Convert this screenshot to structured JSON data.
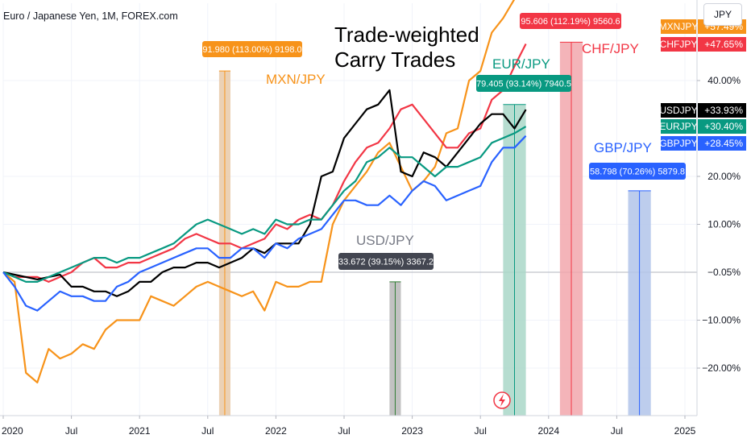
{
  "symbol_title": "Euro / Japanese Yen, 1M, FOREX.com",
  "currency_button": "JPY",
  "chart_title_lines": [
    "Trade-weighted",
    "Carry Trades"
  ],
  "chart_data": {
    "type": "line",
    "title": "Trade-weighted Carry Trades",
    "x_unit": "months since Jan 2020",
    "x_ticks": [
      {
        "x": 0,
        "label": "2020"
      },
      {
        "x": 6,
        "label": "Jul"
      },
      {
        "x": 12,
        "label": "2021"
      },
      {
        "x": 18,
        "label": "Jul"
      },
      {
        "x": 24,
        "label": "2022"
      },
      {
        "x": 30,
        "label": "Jul"
      },
      {
        "x": 36,
        "label": "2023"
      },
      {
        "x": 42,
        "label": "Jul"
      },
      {
        "x": 48,
        "label": "2024"
      },
      {
        "x": 54,
        "label": "Jul"
      },
      {
        "x": 60,
        "label": "2025"
      }
    ],
    "y_ticks": [
      {
        "y": -20,
        "label": "−20.00%"
      },
      {
        "y": -10,
        "label": "−10.00%"
      },
      {
        "y": 10,
        "label": "10.00%"
      },
      {
        "y": 20,
        "label": "20.00%"
      },
      {
        "y": 40,
        "label": "40.00%"
      }
    ],
    "ylim": [
      -30,
      55
    ],
    "grid": true,
    "series": [
      {
        "name": "MXNJPY",
        "color": "#f7931a",
        "last_label": "+57.49%",
        "values": [
          0,
          -2,
          -21,
          -23,
          -16,
          -18,
          -17,
          -15,
          -16,
          -12,
          -10,
          -10,
          -10,
          -5,
          -6,
          -7,
          -5,
          -3,
          -2,
          -3,
          -4,
          -5,
          -4,
          -8,
          -2,
          -3,
          -3,
          -2,
          -2,
          10,
          15,
          18,
          21,
          25,
          27,
          22,
          17,
          19,
          22,
          29,
          30,
          40,
          42,
          50,
          53,
          57,
          57.5
        ]
      },
      {
        "name": "CHFJPY",
        "color": "#f23645",
        "last_label": "+47.65%",
        "values": [
          0,
          -1,
          -1,
          -1,
          -2,
          -1,
          0,
          2,
          3,
          1,
          1,
          2,
          2,
          3,
          4,
          5,
          7,
          8,
          7,
          6,
          6,
          5,
          6,
          7,
          10,
          9,
          11,
          12,
          11,
          14,
          19,
          23,
          26,
          27,
          30,
          34,
          35,
          32,
          29,
          26,
          26,
          29,
          30,
          36,
          38,
          43,
          47.65
        ]
      },
      {
        "name": "USDJPY",
        "color": "#000000",
        "last_label": "+33.93%",
        "values": [
          0,
          -0.5,
          -1,
          -1.5,
          -1,
          -0.5,
          -3,
          -3,
          -4,
          -4,
          -5,
          -4,
          -2,
          -2,
          0,
          1,
          1,
          2,
          2,
          1,
          2,
          3,
          5,
          4,
          6,
          6,
          6,
          10,
          20,
          21,
          28,
          31,
          34,
          35,
          38,
          21,
          20,
          25,
          24,
          22,
          25,
          28,
          31,
          33,
          33,
          30,
          33.93
        ]
      },
      {
        "name": "EURJPY",
        "color": "#089981",
        "last_label": "+30.40%",
        "values": [
          0,
          -1,
          -2,
          -2,
          -1,
          0,
          1,
          2,
          3,
          3,
          2,
          3,
          3,
          4,
          5,
          6,
          8,
          10,
          11,
          10,
          9,
          8,
          9,
          8,
          11,
          10,
          10,
          11,
          11,
          14,
          17,
          19,
          23,
          24,
          26,
          24,
          24,
          22,
          20,
          22,
          22,
          23,
          24,
          27,
          28,
          29,
          30.4
        ]
      },
      {
        "name": "GBPJPY",
        "color": "#2962ff",
        "last_label": "+28.45%",
        "values": [
          0,
          -3,
          -7,
          -8,
          -6,
          -4,
          -5,
          -5,
          -6,
          -6,
          -3,
          -2,
          0,
          1,
          2,
          3,
          4,
          5,
          5,
          3,
          3,
          5,
          5,
          3,
          6,
          5,
          7,
          8,
          9,
          12,
          15,
          15,
          14,
          14,
          16,
          14,
          17,
          19,
          18,
          15,
          16,
          17,
          18,
          23,
          26,
          26,
          28.45
        ]
      }
    ],
    "zero_line_label": "−0.05%",
    "annotations": [
      {
        "pair_label": "MXN/JPY",
        "measure": "91.980 (113.00%) 9198.0",
        "x": 19,
        "x_end": 20,
        "y_top": 42,
        "fill": "#e8c9a8",
        "box_color": "#f7931a",
        "label_color": "#f7931a"
      },
      {
        "pair_label": "USD/JPY",
        "measure": "33.672 (39.15%) 3367.2",
        "x": 34,
        "x_end": 35,
        "y_top": -2,
        "fill": "#b7b7b7",
        "box_color": "#434651",
        "label_color": "#787b86"
      },
      {
        "pair_label": "EUR/JPY",
        "measure": "79.405 (93.14%) 7940.5",
        "x": 44,
        "x_end": 46,
        "y_top": 35,
        "fill": "#a9d7c8",
        "box_color": "#089981",
        "label_color": "#089981"
      },
      {
        "pair_label": "CHF/JPY",
        "measure": "95.606 (112.19%) 9560.6",
        "x": 49,
        "x_end": 51,
        "y_top": 48,
        "fill": "#f2a7ad",
        "box_color": "#f23645",
        "label_color": "#f23645"
      },
      {
        "pair_label": "GBP/JPY",
        "measure": "58.798 (70.26%) 5879.8",
        "x": 55,
        "x_end": 57,
        "y_top": 17,
        "fill": "#b2c4ea",
        "box_color": "#2962ff",
        "label_color": "#2962ff"
      }
    ]
  }
}
